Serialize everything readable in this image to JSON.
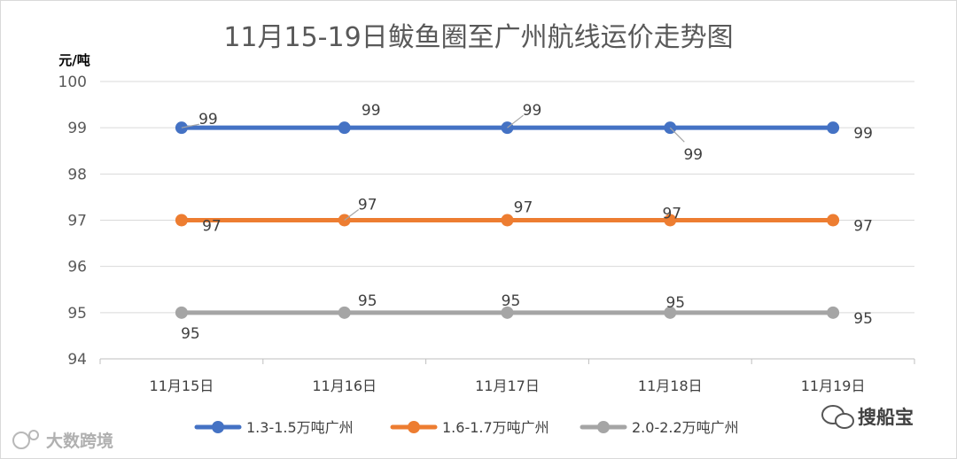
{
  "chart_data": {
    "type": "line",
    "title": "11月15-19日鲅鱼圈至广州航线运价走势图",
    "ylabel": "元/吨",
    "xlabel": "",
    "categories": [
      "11月15日",
      "11月16日",
      "11月17日",
      "11月18日",
      "11月19日"
    ],
    "ylim": [
      94,
      100
    ],
    "yticks": [
      94,
      95,
      96,
      97,
      98,
      99,
      100
    ],
    "grid": true,
    "legend_position": "bottom",
    "series": [
      {
        "name": "1.3-1.5万吨广州",
        "color": "#4472C4",
        "values": [
          99,
          99,
          99,
          99,
          99
        ]
      },
      {
        "name": "1.6-1.7万吨广州",
        "color": "#ED7D31",
        "values": [
          97,
          97,
          97,
          97,
          97
        ]
      },
      {
        "name": "2.0-2.2万吨广州",
        "color": "#A5A5A5",
        "values": [
          95,
          95,
          95,
          95,
          95
        ]
      }
    ]
  },
  "watermarks": {
    "left": "大数跨境",
    "right": "搜船宝"
  }
}
